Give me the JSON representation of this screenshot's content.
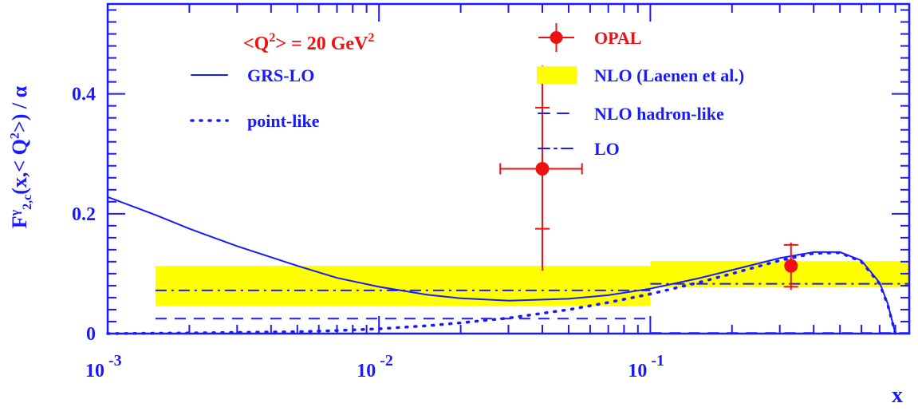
{
  "chart_data": {
    "type": "line",
    "xlabel": "x",
    "ylabel": "F",
    "ylabel_parts": {
      "sup": "γ",
      "sub": "2,c",
      "tail": "(x,< Q",
      "tail_sup": "2",
      "end": ">) / α"
    },
    "xscale": "log",
    "xlim": [
      0.001,
      0.9
    ],
    "ylim": [
      0,
      0.55
    ],
    "x_ticks": [
      {
        "base": "10",
        "exp": "-3",
        "value": 0.001
      },
      {
        "base": "10",
        "exp": "-2",
        "value": 0.01
      },
      {
        "base": "10",
        "exp": "-1",
        "value": 0.1
      }
    ],
    "y_ticks": [
      {
        "label": "0",
        "value": 0
      },
      {
        "label": "0.2",
        "value": 0.2
      },
      {
        "label": "0.4",
        "value": 0.4
      }
    ],
    "colors": {
      "blue": "#1a1aff",
      "red": "#ee1111",
      "yellow": "#ffff00"
    },
    "annotation": {
      "pre": "<Q",
      "sup": "2",
      "mid": "> = 20 GeV",
      "sup2": "2"
    },
    "legend": [
      {
        "label": "GRS-LO",
        "style": "solid",
        "color": "#1a1aff"
      },
      {
        "label": "point-like",
        "style": "dotted",
        "color": "#1a1aff"
      },
      {
        "label": "OPAL",
        "style": "marker",
        "color": "#ee1111"
      },
      {
        "label": "NLO (Laenen et al.)",
        "style": "band",
        "color": "#ffff00"
      },
      {
        "label": "NLO hadron-like",
        "style": "dashed",
        "color": "#1a1aff"
      },
      {
        "label": "LO",
        "style": "dashdot",
        "color": "#1a1aff"
      }
    ],
    "series": [
      {
        "name": "GRS-LO",
        "style": "solid",
        "x": [
          0.001,
          0.0015,
          0.002,
          0.003,
          0.005,
          0.007,
          0.01,
          0.015,
          0.02,
          0.03,
          0.05,
          0.07,
          0.1,
          0.15,
          0.2,
          0.3,
          0.4,
          0.5,
          0.6,
          0.7,
          0.75,
          0.8
        ],
        "y": [
          0.228,
          0.198,
          0.175,
          0.146,
          0.113,
          0.093,
          0.078,
          0.065,
          0.059,
          0.055,
          0.058,
          0.064,
          0.075,
          0.092,
          0.106,
          0.126,
          0.136,
          0.136,
          0.122,
          0.085,
          0.05,
          0.0
        ]
      },
      {
        "name": "point-like",
        "style": "dotted",
        "x": [
          0.001,
          0.002,
          0.003,
          0.005,
          0.007,
          0.01,
          0.015,
          0.02,
          0.03,
          0.05,
          0.07,
          0.1,
          0.15,
          0.2,
          0.3,
          0.4,
          0.5,
          0.6,
          0.7,
          0.75,
          0.8
        ],
        "y": [
          0.0,
          0.001,
          0.002,
          0.003,
          0.005,
          0.008,
          0.013,
          0.018,
          0.026,
          0.04,
          0.052,
          0.066,
          0.085,
          0.1,
          0.122,
          0.134,
          0.135,
          0.12,
          0.083,
          0.048,
          0.0
        ]
      },
      {
        "name": "NLO hadron-like",
        "style": "dashed",
        "segments": [
          {
            "x": [
              0.0015,
              0.1
            ],
            "y": [
              0.025,
              0.025
            ]
          },
          {
            "x": [
              0.1,
              0.9
            ],
            "y": [
              0.001,
              0.001
            ]
          }
        ]
      },
      {
        "name": "LO",
        "style": "dashdot",
        "segments": [
          {
            "x": [
              0.0015,
              0.1
            ],
            "y": [
              0.072,
              0.072
            ]
          },
          {
            "x": [
              0.1,
              0.9
            ],
            "y": [
              0.083,
              0.083
            ]
          }
        ]
      },
      {
        "name": "NLO (Laenen et al.)",
        "style": "band",
        "bands": [
          {
            "x": [
              0.0015,
              0.1
            ],
            "ylow": 0.046,
            "yhigh": 0.113
          },
          {
            "x": [
              0.1,
              0.9
            ],
            "ylow": 0.077,
            "yhigh": 0.121
          }
        ]
      },
      {
        "name": "OPAL",
        "style": "points",
        "points": [
          {
            "x": 0.04,
            "y": 0.275,
            "xlow": 0.028,
            "xhigh": 0.056,
            "ylow": 0.105,
            "yhigh": 0.447,
            "stat_low": 0.175,
            "stat_high": 0.377
          },
          {
            "x": 0.33,
            "y": 0.113,
            "xlow": 0.33,
            "xhigh": 0.33,
            "ylow": 0.073,
            "yhigh": 0.152,
            "stat_low": 0.078,
            "stat_high": 0.148
          }
        ]
      }
    ]
  }
}
